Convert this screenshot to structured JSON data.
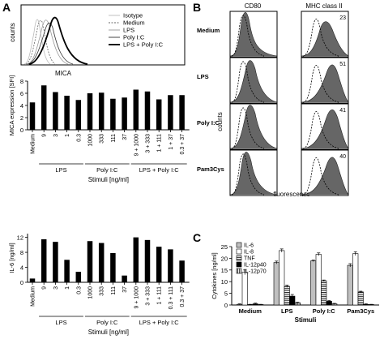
{
  "figure": {
    "panels": {
      "A": "A",
      "B": "B",
      "C": "C"
    },
    "histA": {
      "ylabel": "counts",
      "xlabel": "MICA",
      "legend": [
        "Isotype",
        "Medium",
        "LPS",
        "Poly I:C",
        "LPS + Poly I:C"
      ]
    },
    "panelB": {
      "col_headers": [
        "CD80",
        "MHC class II"
      ],
      "rows": [
        "Medium",
        "LPS",
        "Poly I:C",
        "Pam3Cys"
      ],
      "mhc_values": [
        "23",
        "51",
        "41",
        "40"
      ],
      "ylabel": "counts",
      "xlabel": "fluorescence"
    }
  },
  "chart_data": [
    {
      "type": "bar",
      "ylabel": "MICA expression [SFI]",
      "xlabel": "Stimuli [ng/ml]",
      "ylim": [
        0,
        8
      ],
      "yticks": [
        0,
        2,
        4,
        6,
        8
      ],
      "categories": [
        "Medium",
        "9",
        "3",
        "1",
        "0.3",
        "1000",
        "333",
        "111",
        "37",
        "9 + 1000",
        "3 + 333",
        "1 + 111",
        "1 + 37",
        "0.3 + 37"
      ],
      "values": [
        4.5,
        7.3,
        6.2,
        5.6,
        4.9,
        6.0,
        6.1,
        5.1,
        5.3,
        6.6,
        6.3,
        5.0,
        5.7,
        5.7
      ],
      "groups": [
        "LPS",
        "Poly I:C",
        "LPS + Poly I:C"
      ]
    },
    {
      "type": "bar",
      "ylabel": "IL-6 [ng/ml]",
      "xlabel": "Stimuli [ng/ml]",
      "ylim": [
        0,
        13
      ],
      "yticks": [
        0,
        4,
        8,
        12
      ],
      "categories": [
        "Medium",
        "9",
        "3",
        "1",
        "0.3",
        "1000",
        "333",
        "111",
        "37",
        "9 + 1000",
        "3 + 333",
        "1 + 111",
        "0.3 + 111",
        "0.3 + 37"
      ],
      "values": [
        1.0,
        11.5,
        10.8,
        6.0,
        2.8,
        11.0,
        10.5,
        7.8,
        1.8,
        12.0,
        11.3,
        9.5,
        8.8,
        5.8
      ],
      "groups": [
        "LPS",
        "Poly I:C",
        "LPS + Poly I:C"
      ]
    },
    {
      "type": "bar",
      "ylabel": "Cytokines [ng/ml]",
      "xlabel": "Stimuli",
      "ylim": [
        0,
        25
      ],
      "yticks": [
        0,
        5,
        10,
        15,
        20,
        25
      ],
      "categories": [
        "Medium",
        "LPS",
        "Poly I:C",
        "Pam3Cys"
      ],
      "series": [
        {
          "name": "IL-6",
          "values": [
            0.3,
            18.2,
            18.9,
            17.0
          ],
          "err": [
            0.2,
            0.6,
            0.3,
            0.7
          ]
        },
        {
          "name": "IL-8",
          "values": [
            14.0,
            23.3,
            21.7,
            22.0
          ],
          "err": [
            1.0,
            0.7,
            0.6,
            0.8
          ]
        },
        {
          "name": "TNF",
          "values": [
            0.2,
            8.0,
            10.4,
            5.6
          ],
          "err": [
            0.1,
            0.5,
            0.3,
            0.3
          ]
        },
        {
          "name": "IL-12p40",
          "values": [
            0.5,
            3.8,
            1.6,
            0.3
          ],
          "err": [
            0.3,
            0.7,
            0.3,
            0.2
          ]
        },
        {
          "name": "IL-12p70",
          "values": [
            0.2,
            1.0,
            0.5,
            0.2
          ],
          "err": [
            0.1,
            0.2,
            0.2,
            0.1
          ]
        }
      ],
      "colors": [
        "#c0c0c0",
        "#ffffff",
        "hatch-h",
        "#000000",
        "hatch-v"
      ]
    }
  ]
}
